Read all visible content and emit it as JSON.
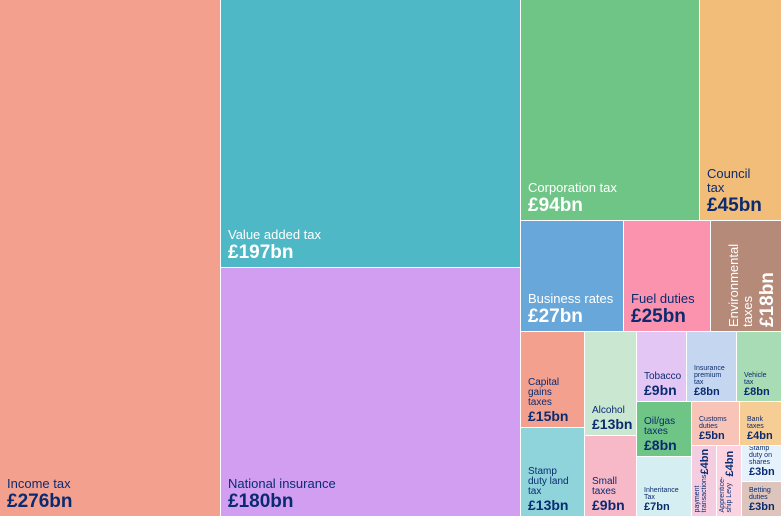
{
  "chart_data": {
    "type": "treemap",
    "unit": "£bn",
    "items": [
      {
        "name": "Income tax",
        "label": "£276bn",
        "value": 276,
        "color": "#f4a08f",
        "text": "#0b2b70"
      },
      {
        "name": "Value added tax",
        "label": "£197bn",
        "value": 197,
        "color": "#4eb8c7",
        "text": "#ffffff"
      },
      {
        "name": "National insurance",
        "label": "£180bn",
        "value": 180,
        "color": "#d19ef2",
        "text": "#0b2b70"
      },
      {
        "name": "Corporation tax",
        "label": "£94bn",
        "value": 94,
        "color": "#6fc585",
        "text": "#ffffff"
      },
      {
        "name": "Council\ntax",
        "label": "£45bn",
        "value": 45,
        "color": "#f2bd79",
        "text": "#0b2b70"
      },
      {
        "name": "Business rates",
        "label": "£27bn",
        "value": 27,
        "color": "#68a7d9",
        "text": "#ffffff"
      },
      {
        "name": "Fuel duties",
        "label": "£25bn",
        "value": 25,
        "color": "#fb93ae",
        "text": "#0b2b70"
      },
      {
        "name": "Environmental\ntaxes",
        "label": "£18bn",
        "value": 18,
        "color": "#b58a78",
        "text": "#ffffff"
      },
      {
        "name": "Capital\ngains\ntaxes",
        "label": "£15bn",
        "value": 15,
        "color": "#f4a08f",
        "text": "#0b2b70"
      },
      {
        "name": "Alcohol",
        "label": "£13bn",
        "value": 13,
        "color": "#c9e7d1",
        "text": "#0b2b70"
      },
      {
        "name": "Stamp\nduty land\ntax",
        "label": "£13bn",
        "value": 13,
        "color": "#8fd4db",
        "text": "#0b2b70"
      },
      {
        "name": "Small\ntaxes",
        "label": "£9bn",
        "value": 9,
        "color": "#f7b8c8",
        "text": "#0b2b70"
      },
      {
        "name": "Tobacco",
        "label": "£9bn",
        "value": 9,
        "color": "#e4c6f5",
        "text": "#0b2b70"
      },
      {
        "name": "Insurance\npremium\ntax",
        "label": "£8bn",
        "value": 8,
        "color": "#c5d7f0",
        "text": "#0b2b70"
      },
      {
        "name": "Vehicle\ntax",
        "label": "£8bn",
        "value": 8,
        "color": "#a8dcb4",
        "text": "#0b2b70"
      },
      {
        "name": "Oil/gas\ntaxes",
        "label": "£8bn",
        "value": 8,
        "color": "#6fc585",
        "text": "#0b2b70"
      },
      {
        "name": "Inheritance\nTax",
        "label": "£7bn",
        "value": 7,
        "color": "#d4eef1",
        "text": "#0b2b70"
      },
      {
        "name": "Customs\nduties",
        "label": "£5bn",
        "value": 5,
        "color": "#f8c4b8",
        "text": "#0b2b70"
      },
      {
        "name": "Bank\ntaxes",
        "label": "£4bn",
        "value": 4,
        "color": "#f6cd94",
        "text": "#0b2b70"
      },
      {
        "name": "Automated\npayment\ntransactions",
        "label": "£4bn",
        "value": 4,
        "color": "#f4cde0",
        "text": "#0b2b70"
      },
      {
        "name": "Apprentice-\nship Levy",
        "label": "£4bn",
        "value": 4,
        "color": "#fcd3e0",
        "text": "#0b2b70"
      },
      {
        "name": "Stamp\nduty on\nshares",
        "label": "£3bn",
        "value": 3,
        "color": "#e6f2fb",
        "text": "#0b2b70"
      },
      {
        "name": "Betting\nduties",
        "label": "£3bn",
        "value": 3,
        "color": "#ddc5bd",
        "text": "#0b2b70"
      }
    ]
  }
}
